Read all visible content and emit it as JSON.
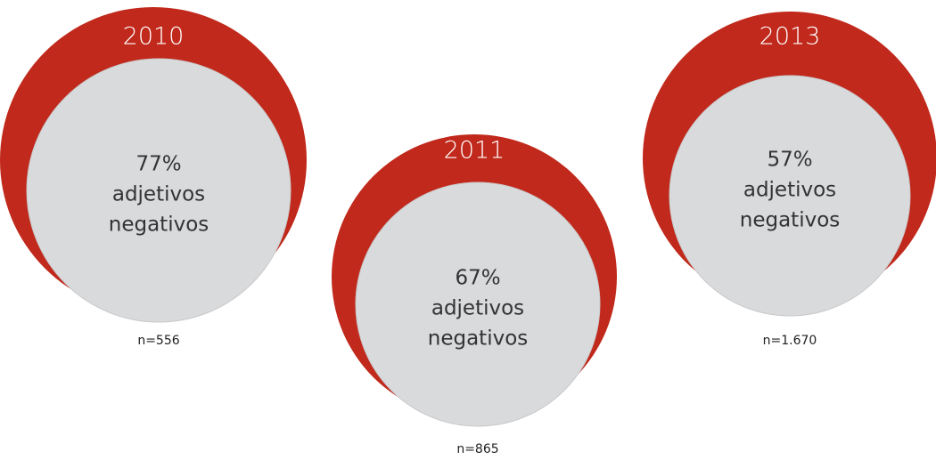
{
  "items": [
    {
      "year": "2010",
      "percent": "77%",
      "label": [
        "adjetivos",
        "negativos"
      ],
      "n": "n=556"
    },
    {
      "year": "2011",
      "percent": "67%",
      "label": [
        "adjetivos",
        "negativos"
      ],
      "n": "n=865"
    },
    {
      "year": "2013",
      "percent": "57%",
      "label": [
        "adjetivos",
        "negativos"
      ],
      "n": "n=1.670"
    }
  ]
}
